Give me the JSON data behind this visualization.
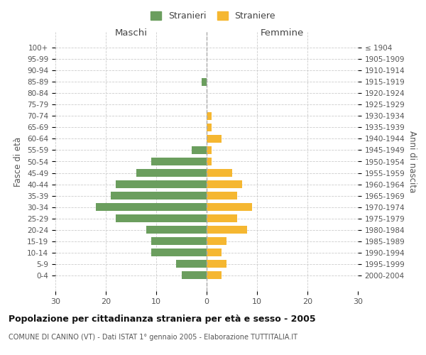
{
  "age_groups": [
    "100+",
    "95-99",
    "90-94",
    "85-89",
    "80-84",
    "75-79",
    "70-74",
    "65-69",
    "60-64",
    "55-59",
    "50-54",
    "45-49",
    "40-44",
    "35-39",
    "30-34",
    "25-29",
    "20-24",
    "15-19",
    "10-14",
    "5-9",
    "0-4"
  ],
  "birth_years": [
    "≤ 1904",
    "1905-1909",
    "1910-1914",
    "1915-1919",
    "1920-1924",
    "1925-1929",
    "1930-1934",
    "1935-1939",
    "1940-1944",
    "1945-1949",
    "1950-1954",
    "1955-1959",
    "1960-1964",
    "1965-1969",
    "1970-1974",
    "1975-1979",
    "1980-1984",
    "1985-1989",
    "1990-1994",
    "1995-1999",
    "2000-2004"
  ],
  "males": [
    0,
    0,
    0,
    1,
    0,
    0,
    0,
    0,
    0,
    3,
    11,
    14,
    18,
    19,
    22,
    18,
    12,
    11,
    11,
    6,
    5
  ],
  "females": [
    0,
    0,
    0,
    0,
    0,
    0,
    1,
    1,
    3,
    1,
    1,
    5,
    7,
    6,
    9,
    6,
    8,
    4,
    3,
    4,
    3
  ],
  "male_color": "#6b9e5e",
  "female_color": "#f5b731",
  "title": "Popolazione per cittadinanza straniera per età e sesso - 2005",
  "subtitle": "COMUNE DI CANINO (VT) - Dati ISTAT 1° gennaio 2005 - Elaborazione TUTTITALIA.IT",
  "legend_male": "Stranieri",
  "legend_female": "Straniere",
  "xlabel_left": "Maschi",
  "xlabel_right": "Femmine",
  "ylabel_left": "Fasce di età",
  "ylabel_right": "Anni di nascita",
  "xlim": 30,
  "background_color": "#ffffff",
  "grid_color": "#cccccc"
}
